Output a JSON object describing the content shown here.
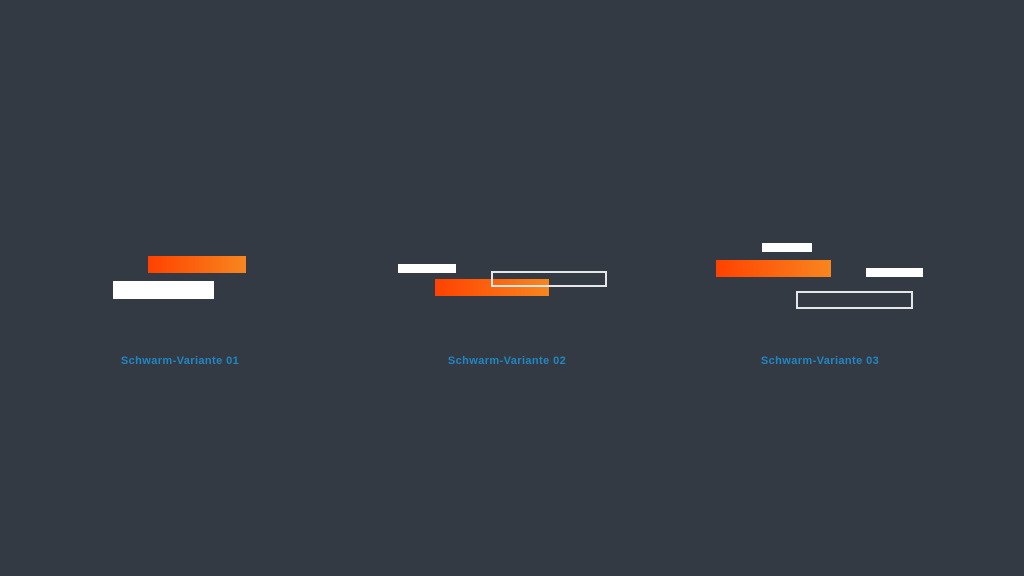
{
  "page": {
    "background": "#343a43"
  },
  "colors": {
    "accent_gradient_start": "#ff4200",
    "accent_gradient_end": "#f8861e",
    "bar_white": "#ffffff",
    "outline_stroke": "#e4e6e8",
    "label_blue": "#1f87c4"
  },
  "variants": [
    {
      "label": "Schwarm-Variante 01"
    },
    {
      "label": "Schwarm-Variante 02"
    },
    {
      "label": "Schwarm-Variante 03"
    }
  ]
}
